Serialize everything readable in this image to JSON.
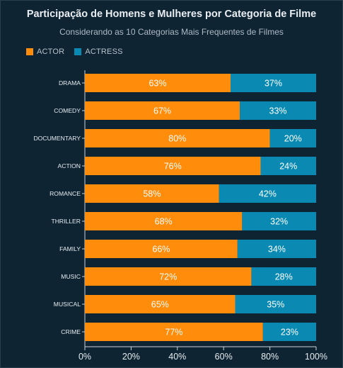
{
  "title": "Participação de Homens e Mulheres por Categoria de Filme",
  "subtitle": "Considerando as 10 Categorias Mais Frequentes de Filmes",
  "colors": {
    "background": "#0f2433",
    "actor": "#ff8c0a",
    "actress": "#0a8ab2",
    "axis": "#c9d2d8",
    "text": "#e6ecf0"
  },
  "legend": [
    {
      "label": "ACTOR",
      "color": "#ff8c0a"
    },
    {
      "label": "ACTRESS",
      "color": "#0a8ab2"
    }
  ],
  "chart_data": {
    "type": "bar",
    "orientation": "horizontal",
    "stacked": true,
    "title": "Participação de Homens e Mulheres por Categoria de Filme",
    "subtitle": "Considerando as 10 Categorias Mais Frequentes de Filmes",
    "categories": [
      "DRAMA",
      "COMEDY",
      "DOCUMENTARY",
      "ACTION",
      "ROMANCE",
      "THRILLER",
      "FAMILY",
      "MUSIC",
      "MUSICAL",
      "CRIME"
    ],
    "series": [
      {
        "name": "ACTOR",
        "color": "#ff8c0a",
        "values": [
          63,
          67,
          80,
          76,
          58,
          68,
          66,
          72,
          65,
          77
        ]
      },
      {
        "name": "ACTRESS",
        "color": "#0a8ab2",
        "values": [
          37,
          33,
          20,
          24,
          42,
          32,
          34,
          28,
          35,
          23
        ]
      }
    ],
    "value_labels": {
      "ACTOR": [
        "63%",
        "67%",
        "80%",
        "76%",
        "58%",
        "68%",
        "66%",
        "72%",
        "65%",
        "77%"
      ],
      "ACTRESS": [
        "37%",
        "33%",
        "20%",
        "24%",
        "42%",
        "32%",
        "34%",
        "28%",
        "35%",
        "23%"
      ]
    },
    "xlim": [
      0,
      100
    ],
    "xticks": [
      "0%",
      "20%",
      "40%",
      "60%",
      "80%",
      "100%"
    ],
    "xlabel": "",
    "ylabel": "",
    "legend_position": "top-left",
    "grid": false
  }
}
